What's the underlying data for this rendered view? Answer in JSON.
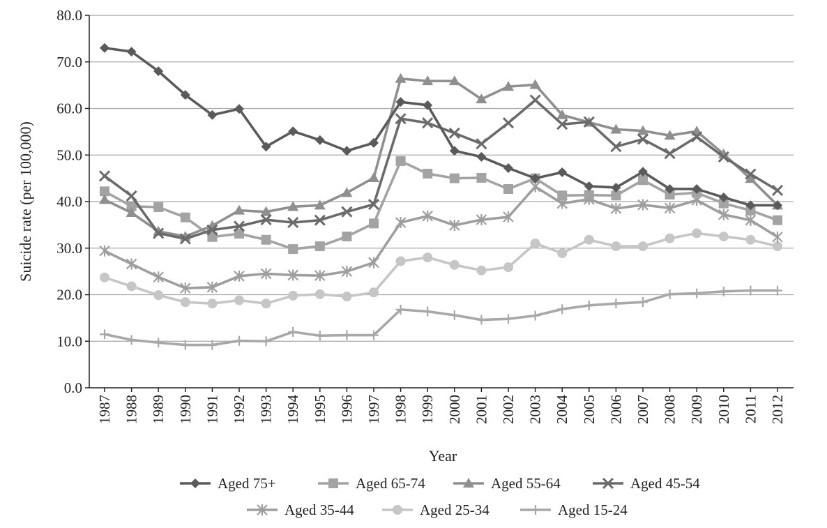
{
  "chart_data": {
    "type": "line",
    "xlabel": "Year",
    "ylabel": "Suicide rate (per 100,000)",
    "ylim": [
      0,
      80
    ],
    "yticks": [
      "0.0",
      "10.0",
      "20.0",
      "30.0",
      "40.0",
      "50.0",
      "60.0",
      "70.0",
      "80.0"
    ],
    "x": [
      "1987",
      "1988",
      "1989",
      "1990",
      "1991",
      "1992",
      "1993",
      "1994",
      "1995",
      "1996",
      "1997",
      "1998",
      "1999",
      "2000",
      "2001",
      "2002",
      "2003",
      "2004",
      "2005",
      "2006",
      "2007",
      "2008",
      "2009",
      "2010",
      "2011",
      "2012"
    ],
    "grid": "horizontal",
    "legend_position": "bottom",
    "series": [
      {
        "name": "Aged 75+",
        "marker": "diamond",
        "color": "#5a5a5a",
        "values": [
          73.0,
          72.2,
          68.0,
          62.9,
          58.6,
          59.9,
          51.8,
          55.1,
          53.2,
          50.9,
          52.6,
          61.4,
          60.7,
          50.9,
          49.6,
          47.2,
          45.0,
          46.3,
          43.3,
          43.0,
          46.4,
          42.7,
          42.7,
          40.9,
          39.2,
          39.2
        ]
      },
      {
        "name": "Aged 65-74",
        "marker": "square",
        "color": "#a3a3a3",
        "values": [
          42.2,
          39.0,
          38.8,
          36.6,
          32.4,
          33.1,
          31.8,
          29.8,
          30.4,
          32.5,
          35.3,
          48.7,
          46.0,
          45.0,
          45.1,
          42.7,
          45.0,
          41.3,
          41.4,
          41.3,
          44.6,
          41.5,
          41.9,
          39.6,
          38.1,
          36.0
        ]
      },
      {
        "name": "Aged 55-64",
        "marker": "triangle",
        "color": "#8f8f8f",
        "values": [
          40.4,
          37.6,
          33.6,
          32.5,
          34.8,
          38.1,
          37.8,
          38.9,
          39.2,
          41.9,
          45.1,
          66.4,
          65.9,
          65.9,
          62.0,
          64.7,
          65.1,
          58.6,
          57.0,
          55.5,
          55.2,
          54.2,
          55.1,
          50.2,
          44.9,
          39.2
        ]
      },
      {
        "name": "Aged 45-54",
        "marker": "x",
        "color": "#6a6a6a",
        "values": [
          45.5,
          41.2,
          33.2,
          32.0,
          33.9,
          34.7,
          36.1,
          35.5,
          36.0,
          37.8,
          39.4,
          57.8,
          56.9,
          54.7,
          52.4,
          56.9,
          61.8,
          56.6,
          57.1,
          51.8,
          53.4,
          50.3,
          53.9,
          49.6,
          45.9,
          42.4
        ]
      },
      {
        "name": "Aged 35-44",
        "marker": "star",
        "color": "#9e9e9e",
        "values": [
          29.4,
          26.6,
          23.8,
          21.4,
          21.6,
          24.0,
          24.5,
          24.2,
          24.1,
          25.0,
          26.9,
          35.5,
          36.9,
          34.9,
          36.1,
          36.7,
          43.2,
          39.6,
          40.5,
          38.5,
          39.3,
          38.6,
          40.3,
          37.2,
          36.0,
          32.4
        ]
      },
      {
        "name": "Aged 25-34",
        "marker": "circle",
        "color": "#c6c6c6",
        "values": [
          23.7,
          21.8,
          19.9,
          18.4,
          18.1,
          18.8,
          18.1,
          19.8,
          20.1,
          19.6,
          20.5,
          27.2,
          28.0,
          26.4,
          25.2,
          25.9,
          31.0,
          28.9,
          31.8,
          30.4,
          30.4,
          32.1,
          33.2,
          32.5,
          31.8,
          30.4
        ]
      },
      {
        "name": "Aged 15-24",
        "marker": "plus",
        "color": "#a8a8a8",
        "values": [
          11.5,
          10.3,
          9.7,
          9.2,
          9.2,
          10.1,
          10.0,
          12.0,
          11.2,
          11.3,
          11.3,
          16.8,
          16.4,
          15.6,
          14.6,
          14.8,
          15.5,
          16.9,
          17.7,
          18.1,
          18.4,
          20.1,
          20.3,
          20.7,
          20.9,
          20.9
        ]
      }
    ]
  }
}
